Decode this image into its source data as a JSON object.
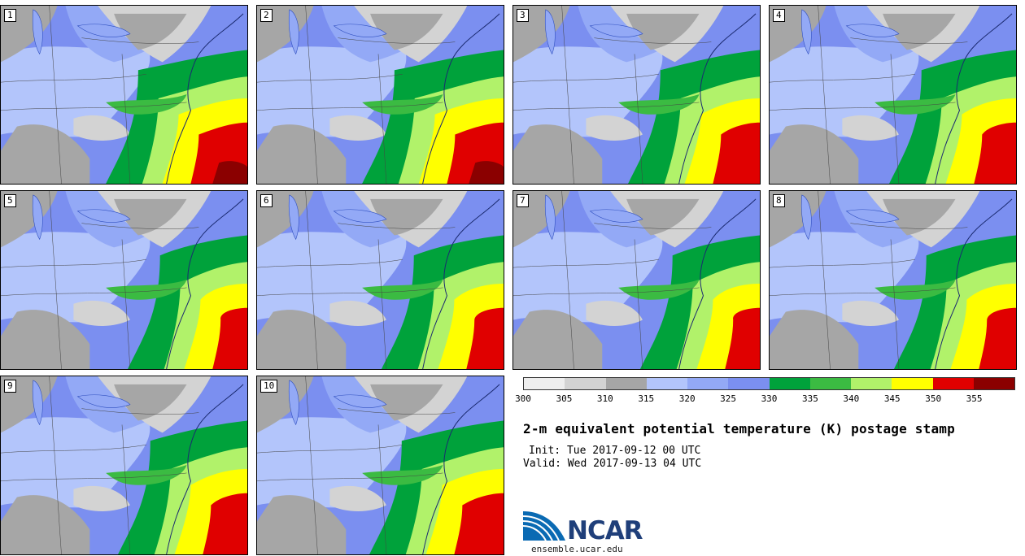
{
  "stamps": [
    {
      "label": "1",
      "warm": 1.0
    },
    {
      "label": "2",
      "warm": 1.0
    },
    {
      "label": "3",
      "warm": 0.8
    },
    {
      "label": "4",
      "warm": 0.7
    },
    {
      "label": "5",
      "warm": 0.55
    },
    {
      "label": "6",
      "warm": 0.6
    },
    {
      "label": "7",
      "warm": 0.55
    },
    {
      "label": "8",
      "warm": 0.6
    },
    {
      "label": "9",
      "warm": 0.75
    },
    {
      "label": "10",
      "warm": 0.85
    }
  ],
  "legend": {
    "colors": [
      "#eeeeee",
      "#d3d3d3",
      "#a6a6a6",
      "#b3c5fb",
      "#93a9f6",
      "#7b8ff0",
      "#00a23b",
      "#3bbb42",
      "#b1f26a",
      "#ffff00",
      "#e00000",
      "#8b0000"
    ],
    "ticks": [
      "300",
      "305",
      "310",
      "315",
      "320",
      "325",
      "330",
      "335",
      "340",
      "345",
      "350",
      "355"
    ]
  },
  "title": "2-m equivalent potential temperature (K) postage stamp",
  "init": "Init: Tue 2017-09-12 00 UTC",
  "valid": "Valid: Wed 2017-09-13 04 UTC",
  "logo": {
    "name": "NCAR",
    "url": "ensemble.ucar.edu"
  }
}
